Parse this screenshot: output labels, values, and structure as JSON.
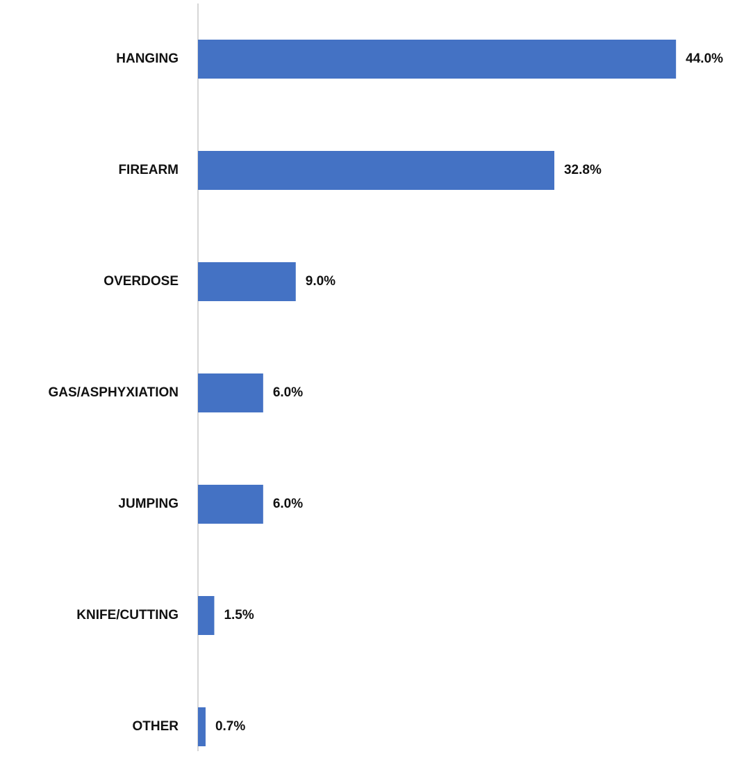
{
  "chart_data": {
    "type": "hbar",
    "categories": [
      "HANGING",
      "FIREARM",
      "OVERDOSE",
      "GAS/ASPHYXIATION",
      "JUMPING",
      "KNIFE/CUTTING",
      "OTHER"
    ],
    "values": [
      44.0,
      32.8,
      9.0,
      6.0,
      6.0,
      1.5,
      0.7
    ],
    "value_labels": [
      "44.0%",
      "32.8%",
      "9.0%",
      "6.0%",
      "6.0%",
      "1.5%",
      "0.7%"
    ],
    "color": "#4472c4",
    "xlim": [
      0,
      50
    ]
  }
}
